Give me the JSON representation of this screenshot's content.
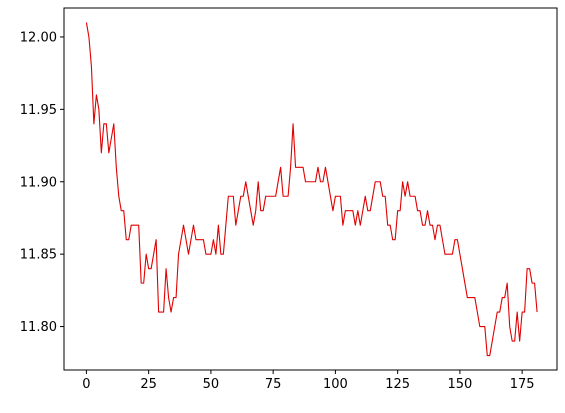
{
  "chart_data": {
    "type": "line",
    "title": "",
    "xlabel": "",
    "ylabel": "",
    "xlim": [
      -9,
      189
    ],
    "ylim": [
      11.77,
      12.02
    ],
    "grid": false,
    "xticks": [
      0,
      25,
      50,
      75,
      100,
      125,
      150,
      175
    ],
    "xtick_labels": [
      "0",
      "25",
      "50",
      "75",
      "100",
      "125",
      "150",
      "175"
    ],
    "yticks": [
      11.8,
      11.85,
      11.9,
      11.95,
      12.0
    ],
    "ytick_labels": [
      "11.80",
      "11.85",
      "11.90",
      "11.95",
      "12.00"
    ],
    "line_color": "#e00000",
    "series": [
      {
        "x_start": 0,
        "x_step": 1,
        "values": [
          12.01,
          12.0,
          11.98,
          11.94,
          11.96,
          11.95,
          11.92,
          11.94,
          11.94,
          11.92,
          11.93,
          11.94,
          11.91,
          11.89,
          11.88,
          11.88,
          11.86,
          11.86,
          11.87,
          11.87,
          11.87,
          11.87,
          11.83,
          11.83,
          11.85,
          11.84,
          11.84,
          11.85,
          11.86,
          11.81,
          11.81,
          11.81,
          11.84,
          11.82,
          11.81,
          11.82,
          11.82,
          11.85,
          11.86,
          11.87,
          11.86,
          11.85,
          11.86,
          11.87,
          11.86,
          11.86,
          11.86,
          11.86,
          11.85,
          11.85,
          11.85,
          11.86,
          11.85,
          11.87,
          11.85,
          11.85,
          11.87,
          11.89,
          11.89,
          11.89,
          11.87,
          11.88,
          11.89,
          11.89,
          11.9,
          11.89,
          11.88,
          11.87,
          11.88,
          11.9,
          11.88,
          11.88,
          11.89,
          11.89,
          11.89,
          11.89,
          11.89,
          11.9,
          11.91,
          11.89,
          11.89,
          11.89,
          11.91,
          11.94,
          11.91,
          11.91,
          11.91,
          11.91,
          11.9,
          11.9,
          11.9,
          11.9,
          11.9,
          11.91,
          11.9,
          11.9,
          11.91,
          11.9,
          11.89,
          11.88,
          11.89,
          11.89,
          11.89,
          11.87,
          11.88,
          11.88,
          11.88,
          11.88,
          11.87,
          11.88,
          11.87,
          11.88,
          11.89,
          11.88,
          11.88,
          11.89,
          11.9,
          11.9,
          11.9,
          11.89,
          11.89,
          11.87,
          11.87,
          11.86,
          11.86,
          11.88,
          11.88,
          11.9,
          11.89,
          11.9,
          11.89,
          11.89,
          11.89,
          11.88,
          11.88,
          11.87,
          11.87,
          11.88,
          11.87,
          11.87,
          11.86,
          11.87,
          11.87,
          11.86,
          11.85,
          11.85,
          11.85,
          11.85,
          11.86,
          11.86,
          11.85,
          11.84,
          11.83,
          11.82,
          11.82,
          11.82,
          11.82,
          11.81,
          11.8,
          11.8,
          11.8,
          11.78,
          11.78,
          11.79,
          11.8,
          11.81,
          11.81,
          11.82,
          11.82,
          11.83,
          11.8,
          11.79,
          11.79,
          11.81,
          11.79,
          11.81,
          11.81,
          11.84,
          11.84,
          11.83,
          11.83,
          11.81
        ]
      }
    ]
  }
}
